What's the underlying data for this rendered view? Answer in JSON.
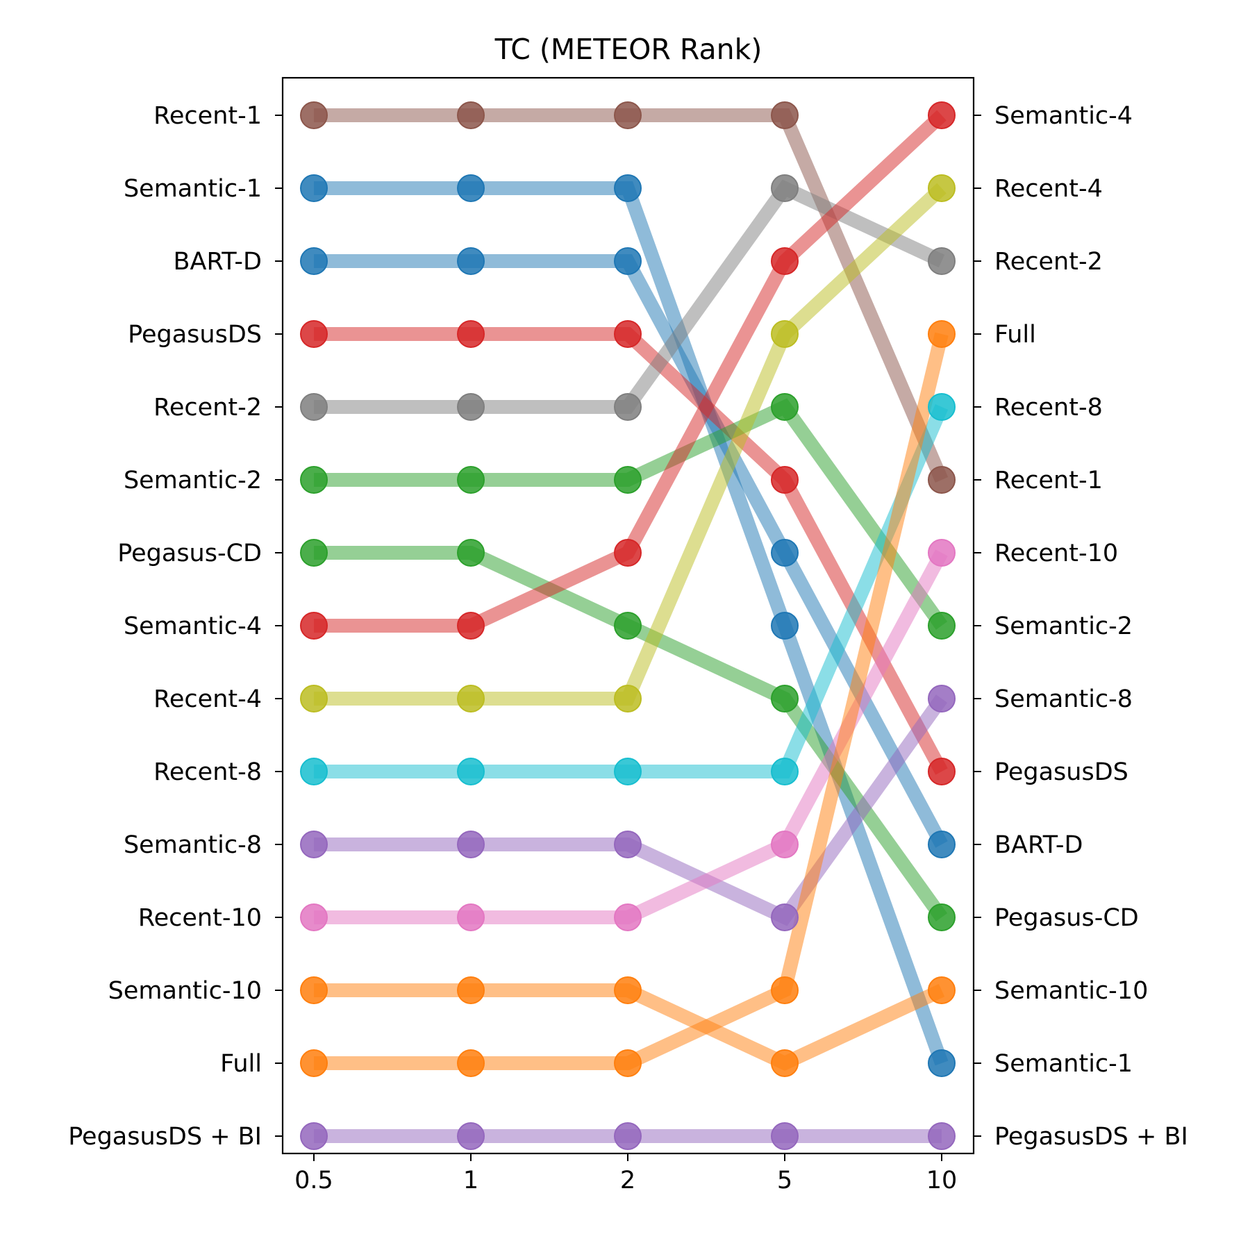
{
  "chart_data": {
    "type": "line",
    "title": "TC (METEOR Rank)",
    "xlabel": "",
    "ylabel": "",
    "x": [
      "0.5",
      "1",
      "2",
      "5",
      "10"
    ],
    "y_ticks_left": [
      "Recent-1",
      "Semantic-1",
      "BART-D",
      "PegasusDS",
      "Recent-2",
      "Semantic-2",
      "Pegasus-CD",
      "Semantic-4",
      "Recent-4",
      "Recent-8",
      "Semantic-8",
      "Recent-10",
      "Semantic-10",
      "Full",
      "PegasusDS + BI"
    ],
    "y_ticks_right": [
      "Semantic-4",
      "Recent-4",
      "Recent-2",
      "Full",
      "Recent-8",
      "Recent-1",
      "Recent-10",
      "Semantic-2",
      "Semantic-8",
      "PegasusDS",
      "BART-D",
      "Pegasus-CD",
      "Semantic-10",
      "Semantic-1",
      "PegasusDS + BI"
    ],
    "grid": false,
    "series": [
      {
        "color": "#8c564b",
        "ranks": [
          1,
          1,
          1,
          1,
          6
        ]
      },
      {
        "color": "#1f77b4",
        "ranks": [
          2,
          2,
          2,
          8,
          14
        ]
      },
      {
        "color": "#1f77b4",
        "ranks": [
          3,
          3,
          3,
          7,
          11
        ]
      },
      {
        "color": "#d62728",
        "ranks": [
          4,
          4,
          4,
          6,
          10
        ]
      },
      {
        "color": "#7f7f7f",
        "ranks": [
          5,
          5,
          5,
          2,
          3
        ]
      },
      {
        "color": "#2ca02c",
        "ranks": [
          6,
          6,
          6,
          5,
          8
        ]
      },
      {
        "color": "#2ca02c",
        "ranks": [
          7,
          7,
          8,
          9,
          12
        ]
      },
      {
        "color": "#d62728",
        "ranks": [
          8,
          8,
          7,
          3,
          1
        ]
      },
      {
        "color": "#bcbd22",
        "ranks": [
          9,
          9,
          9,
          4,
          2
        ]
      },
      {
        "color": "#17becf",
        "ranks": [
          10,
          10,
          10,
          10,
          5
        ]
      },
      {
        "color": "#9467bd",
        "ranks": [
          11,
          11,
          11,
          12,
          9
        ]
      },
      {
        "color": "#e377c2",
        "ranks": [
          12,
          12,
          12,
          11,
          7
        ]
      },
      {
        "color": "#ff7f0e",
        "ranks": [
          13,
          13,
          13,
          14,
          13
        ]
      },
      {
        "color": "#ff7f0e",
        "ranks": [
          14,
          14,
          14,
          13,
          4
        ]
      },
      {
        "color": "#9467bd",
        "ranks": [
          15,
          15,
          15,
          15,
          15
        ]
      }
    ]
  }
}
